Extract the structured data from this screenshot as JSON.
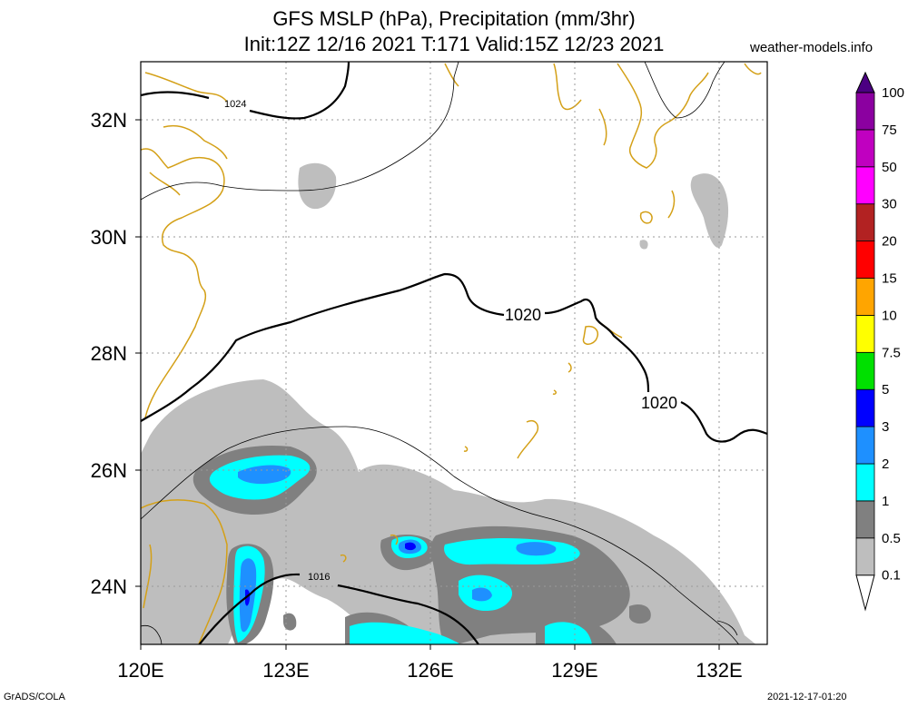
{
  "header": {
    "title_line1": "GFS MSLP (hPa), Precipitation (mm/3hr)",
    "title_line2": "Init:12Z 12/16 2021 T:171 Valid:15Z 12/23 2021",
    "site": "weather-models.info"
  },
  "map": {
    "lon_range": [
      120,
      133
    ],
    "lat_range": [
      23,
      33
    ],
    "x_ticks": [
      "120E",
      "123E",
      "126E",
      "129E",
      "132E"
    ],
    "y_ticks": [
      "24N",
      "26N",
      "28N",
      "30N",
      "32N"
    ],
    "isobar_labels": [
      "1024",
      "1020",
      "1020",
      "1016"
    ]
  },
  "legend": {
    "levels": [
      "0.1",
      "0.5",
      "1",
      "2",
      "3",
      "5",
      "7.5",
      "10",
      "15",
      "20",
      "30",
      "50",
      "75",
      "100"
    ],
    "colors": [
      "#ffffff",
      "#bebebe",
      "#808080",
      "#00ffff",
      "#1e90ff",
      "#0000ff",
      "#00e000",
      "#ffff00",
      "#ffa500",
      "#ff0000",
      "#b22222",
      "#ff00ff",
      "#c000c0",
      "#8b00a0",
      "#4b0082"
    ]
  },
  "footer": {
    "left": "GrADS/COLA",
    "right": "2021-12-17-01:20"
  }
}
